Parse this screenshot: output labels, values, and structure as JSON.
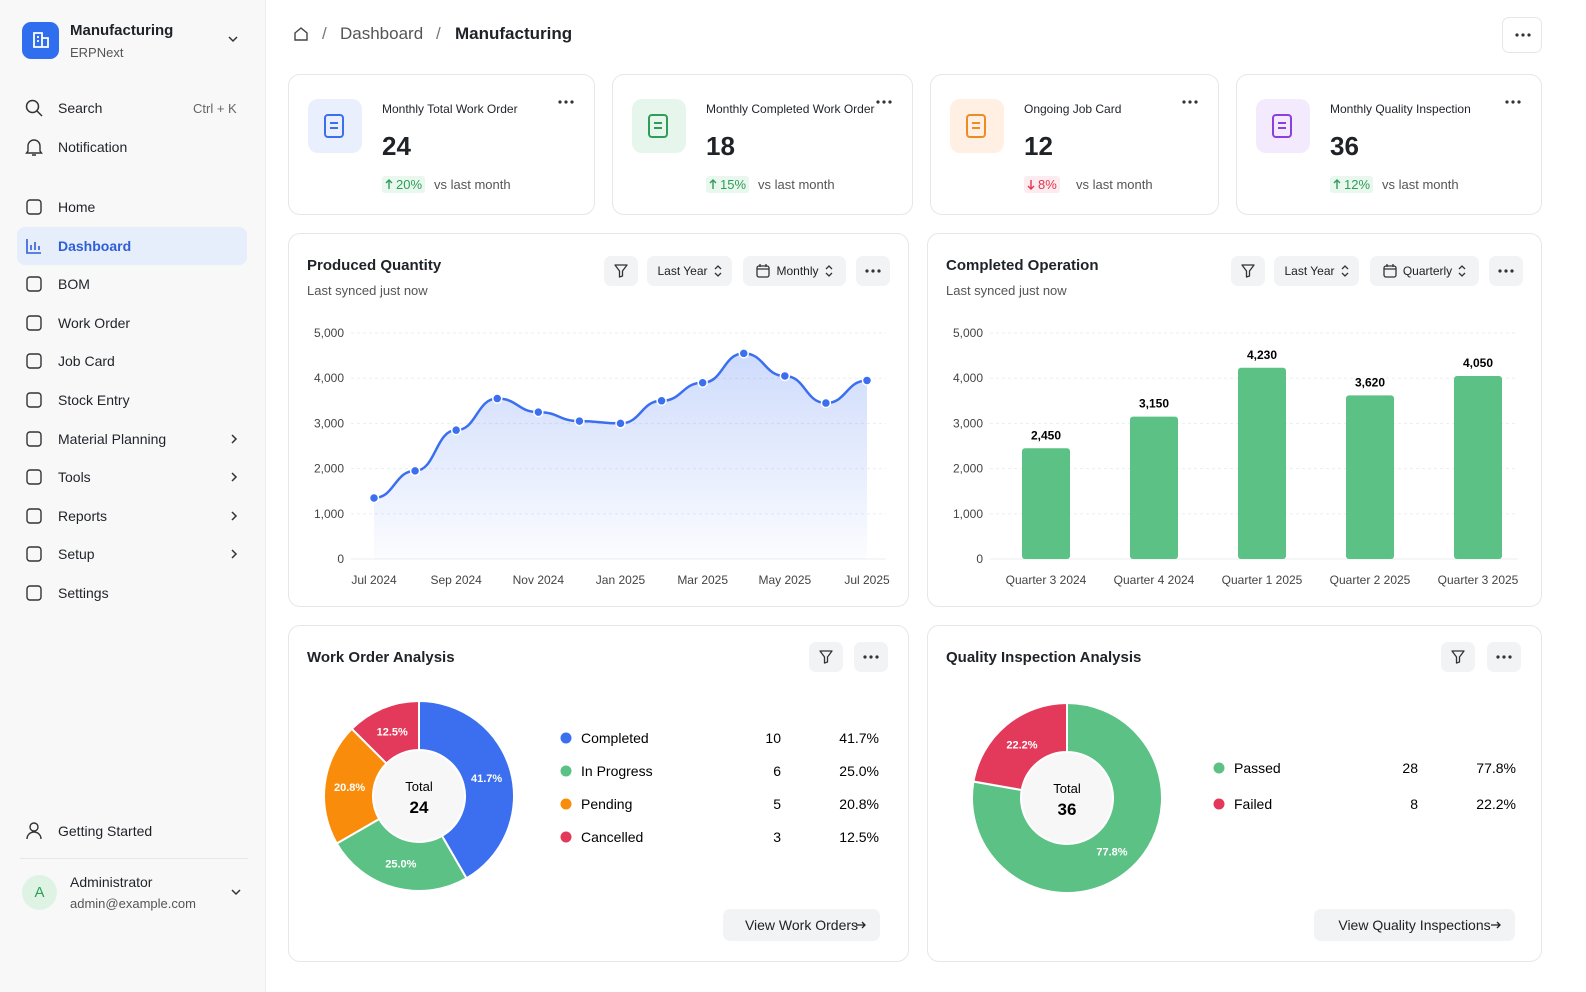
{
  "sidebar": {
    "workspace": "Manufacturing",
    "app": "ERPNext",
    "search": "Search",
    "shortcut": "Ctrl + K",
    "notification": "Notification",
    "nav": [
      "Home",
      "Dashboard",
      "BOM",
      "Work Order",
      "Job Card",
      "Stock Entry",
      "Material Planning",
      "Tools",
      "Reports",
      "Setup",
      "Settings"
    ],
    "getting_started": "Getting Started",
    "user": {
      "initial": "A",
      "name": "Administrator",
      "email": "admin@example.com"
    }
  },
  "breadcrumb": [
    "Dashboard",
    "Manufacturing"
  ],
  "kpis": [
    {
      "title": "Monthly Total Work Order",
      "value": 24,
      "change": "20%",
      "direction": "up",
      "note": "vs last month",
      "color": "#3b6ff0",
      "bg": "#e9effd"
    },
    {
      "title": "Monthly Completed Work Order",
      "value": 18,
      "change": "15%",
      "direction": "up",
      "note": "vs last month",
      "color": "#2e9e57",
      "bg": "#e7f6ec"
    },
    {
      "title": "Ongoing Job Card",
      "value": 12,
      "change": "8%",
      "direction": "down",
      "note": "vs last month",
      "color": "#f08a24",
      "bg": "#fff0e3"
    },
    {
      "title": "Monthly Quality Inspection",
      "value": 36,
      "change": "12%",
      "direction": "up",
      "note": "vs last month",
      "color": "#8b3fe0",
      "bg": "#f3ebfd"
    }
  ],
  "chart_data": [
    {
      "type": "line",
      "title": "Produced Quantity",
      "subtitle": "Last synced just now",
      "filters": [
        "Last Year",
        "Monthly"
      ],
      "categories": [
        "Jul 2024",
        null,
        "Sep 2024",
        null,
        "Nov 2024",
        null,
        "Jan 2025",
        null,
        "Mar 2025",
        null,
        "May 2025",
        null,
        "Jul 2025"
      ],
      "values": [
        1350,
        1950,
        2850,
        3550,
        3250,
        3050,
        3000,
        3500,
        3900,
        4550,
        4050,
        3450,
        3950
      ],
      "color": "#3b6ff0",
      "ylim": [
        0,
        5000
      ],
      "yticks": [
        0,
        {
          "value": 1000,
          "label": "1,000"
        },
        {
          "value": 2000,
          "label": "2,000"
        },
        {
          "value": 3000,
          "label": "3,000"
        },
        {
          "value": 4000,
          "label": "4,000"
        },
        {
          "value": 5000,
          "label": "5,000"
        }
      ],
      "grid": true
    },
    {
      "type": "bar",
      "title": "Completed Operation",
      "subtitle": "Last synced just now",
      "filters": [
        "Last Year",
        "Quarterly"
      ],
      "categories": [
        "Quarter 3 2024",
        "Quarter 4 2024",
        "Quarter 1 2025",
        "Quarter 2 2025",
        "Quarter 3 2025"
      ],
      "values": [
        2450,
        3150,
        4230,
        3620,
        4050
      ],
      "value_labels": [
        "2,450",
        "3,150",
        "4,230",
        "3,620",
        "4,050"
      ],
      "color": "#5cc184",
      "ylim": [
        0,
        5000
      ],
      "yticks": [
        0,
        {
          "value": 1000,
          "label": "1,000"
        },
        {
          "value": 2000,
          "label": "2,000"
        },
        {
          "value": 3000,
          "label": "3,000"
        },
        {
          "value": 4000,
          "label": "4,000"
        },
        {
          "value": 5000,
          "label": "5,000"
        }
      ],
      "grid": true
    },
    {
      "type": "donut",
      "title": "Work Order Analysis",
      "categories": [
        "Completed",
        "In Progress",
        "Pending",
        "Cancelled"
      ],
      "values": [
        10,
        6,
        5,
        3
      ],
      "percent_labels": [
        "41.7%",
        "25.0%",
        "20.8%",
        "12.5%"
      ],
      "colors": [
        "#3b6ff0",
        "#5cc184",
        "#f98c0b",
        "#e3395b"
      ],
      "center_label": "Total",
      "total": 24,
      "button": "View Work Orders"
    },
    {
      "type": "donut",
      "title": "Quality Inspection Analysis",
      "categories": [
        "Passed",
        "Failed"
      ],
      "values": [
        28,
        8
      ],
      "percent_labels": [
        "77.8%",
        "22.2%"
      ],
      "colors": [
        "#5cc184",
        "#e3395b"
      ],
      "center_label": "Total",
      "total": 36,
      "button": "View Quality Inspections"
    }
  ]
}
